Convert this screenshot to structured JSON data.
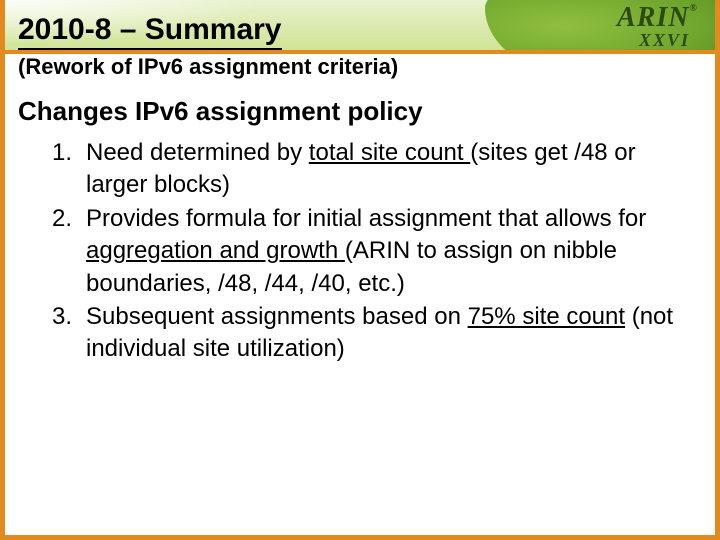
{
  "colors": {
    "frame": "#e08a1f",
    "band_light_top": "#e9f2cf",
    "band_light_bot": "#cfe394",
    "band_dark": "#6ea52c",
    "text": "#000000",
    "logo": "#2e4a13"
  },
  "logo": {
    "main": "ARIN",
    "reg": "®",
    "sub": "XXVI"
  },
  "slide": {
    "title": "2010-8 – Summary",
    "subtitle": "(Rework of IPv6 assignment criteria)",
    "section": "Changes IPv6 assignment policy",
    "items": [
      {
        "num": "1.",
        "pre": "Need determined by ",
        "u": "total site count ",
        "post": "(sites get /48 or larger blocks)"
      },
      {
        "num": "2.",
        "pre": "Provides formula for initial assignment that allows for ",
        "u": "aggregation and growth ",
        "post": "(ARIN to assign on nibble boundaries, /48, /44, /40, etc.)"
      },
      {
        "num": "3.",
        "pre": "Subsequent assignments based on ",
        "u": "75% site count",
        "post": " (not individual site utilization)"
      }
    ]
  }
}
